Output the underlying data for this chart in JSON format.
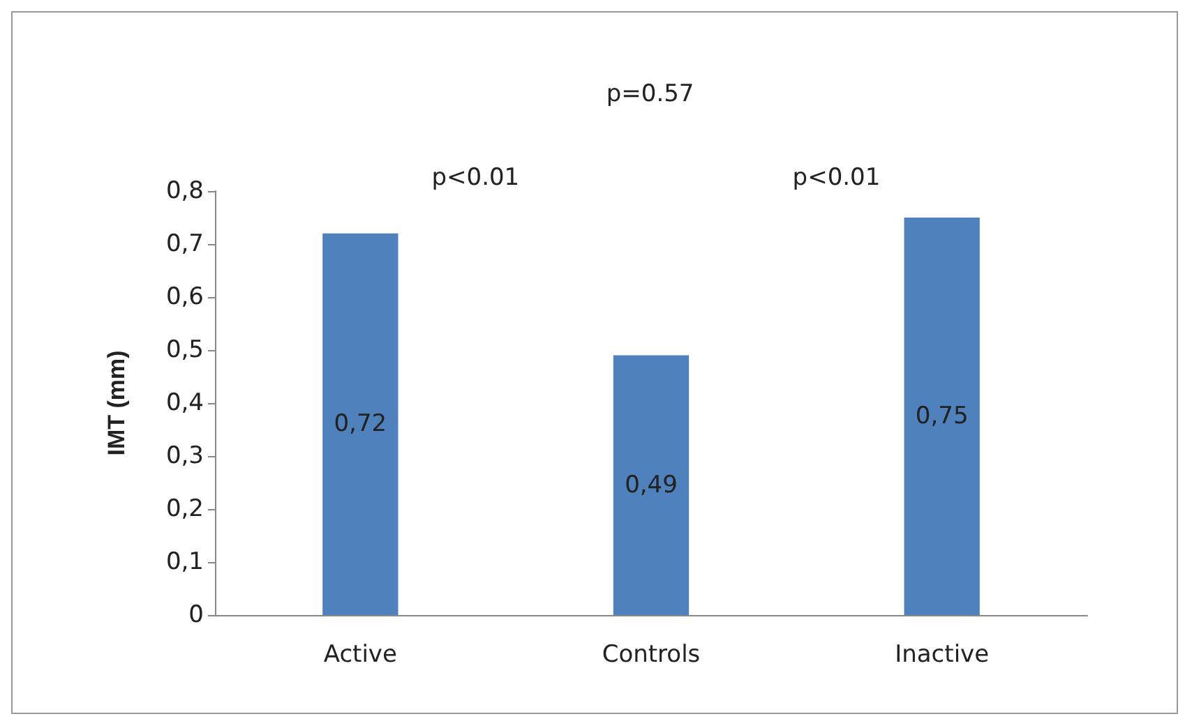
{
  "chart_data": {
    "type": "bar",
    "ylabel": "IMT (mm)",
    "categories": [
      "Active",
      "Controls",
      "Inactive"
    ],
    "values": [
      0.72,
      0.49,
      0.75
    ],
    "value_labels": [
      "0,72",
      "0,49",
      "0,75"
    ],
    "color": "#4f81bd",
    "ylim": [
      0,
      0.8
    ],
    "yticks": [
      0,
      {
        "value": 0.1,
        "label": "0,1"
      },
      {
        "value": 0.2,
        "label": "0,2"
      },
      {
        "value": 0.3,
        "label": "0,3"
      },
      {
        "value": 0.4,
        "label": "0,4"
      },
      {
        "value": 0.5,
        "label": "0,5"
      },
      {
        "value": 0.6,
        "label": "0,6"
      },
      {
        "value": 0.7,
        "label": "0,7"
      },
      {
        "value": 0.8,
        "label": "0,8"
      }
    ],
    "annotations": [
      "p=0.57",
      "p<0.01",
      "p<0.01"
    ]
  }
}
